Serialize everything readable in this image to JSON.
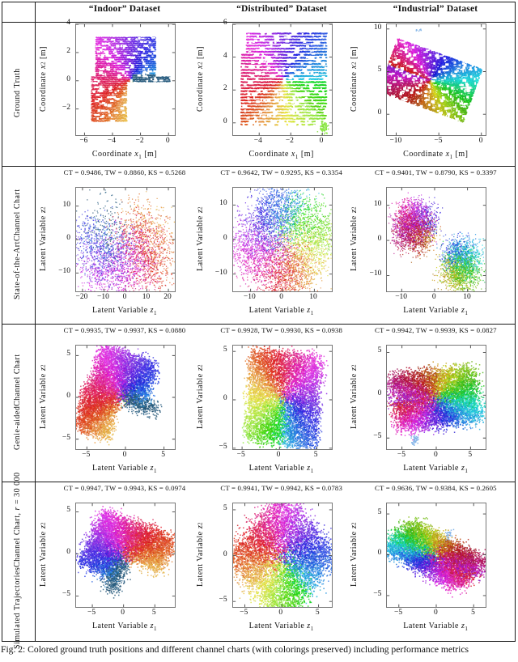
{
  "figure_kind": "paper-figure-table-of-scatter-plots",
  "colors": {
    "table_border": "#1a1a1a",
    "box_border": "#777777",
    "tick": "#444444",
    "text": "#111111",
    "background": "#ffffff",
    "outlier_blue": "#85b5e8"
  },
  "header": {
    "col_labels": [
      "“Indoor” Dataset",
      "“Distributed” Dataset",
      "“Industrial” Dataset"
    ]
  },
  "rows": [
    {
      "label_lines": [
        [
          {
            "t": "Ground Truth"
          }
        ]
      ]
    },
    {
      "label_lines": [
        [
          {
            "t": "State-of-the-Art"
          }
        ],
        [
          {
            "t": "Channel Chart"
          }
        ]
      ]
    },
    {
      "label_lines": [
        [
          {
            "t": "Genie-aided"
          }
        ],
        [
          {
            "t": "Channel Chart"
          }
        ]
      ]
    },
    {
      "label_lines": [
        [
          {
            "t": "Simulated Trajectories"
          }
        ],
        [
          {
            "t": "Channel Chart, "
          },
          {
            "t": "r",
            "i": true
          },
          {
            "t": " = 30 000"
          }
        ]
      ]
    }
  ],
  "caption": "Fig. 2: Colored ground truth positions and different channel charts (with colorings preserved) including performance metrics",
  "colormap_note": "Scatter points are colored by ground-truth position with a 2D rainbow colormap; colorings are preserved in all channel chart rows.",
  "datasets": {
    "indoor": {
      "aspect": 1.05,
      "colormap": {
        "offset": 193,
        "slope": 0.8,
        "wrap": true
      }
    },
    "distributed": {
      "aspect": 1.04,
      "colormap": {
        "offset": 188,
        "slope": 0.84,
        "wrap": true
      }
    },
    "industrial": {
      "aspect": 0.56,
      "colormap": {
        "offset": 140,
        "slope": 1.25,
        "wrap": false
      },
      "center": [
        -6.05,
        4.05
      ],
      "halfL": 5.3,
      "halfW": 3.3,
      "angle_deg": -20
    }
  },
  "chart_data": [
    {
      "row": 0,
      "col": 0,
      "type": "scatter",
      "dataset": "indoor",
      "metrics": null,
      "metrics_text": "",
      "xlabel": {
        "pre": "Coordinate",
        "v": "x",
        "sub": "1",
        "post": "[m]"
      },
      "ylabel": {
        "pre": "Coordinate",
        "v": "x",
        "sub": "2",
        "post": "[m]"
      },
      "xlim": [
        -6.6,
        0.45
      ],
      "ylim": [
        -3.85,
        4.0
      ],
      "xticks": [
        [
          -6,
          "−6"
        ],
        [
          -4,
          "−4"
        ],
        [
          -2,
          "−2"
        ],
        [
          0,
          "0"
        ]
      ],
      "yticks": [
        [
          -2,
          "−2"
        ],
        [
          0,
          "0"
        ],
        [
          2,
          "2"
        ],
        [
          4,
          "4"
        ]
      ],
      "style": {
        "mode": "gt-lines",
        "lineStep": 0.14,
        "ptStep": 0.035,
        "holes": 120
      }
    },
    {
      "row": 0,
      "col": 1,
      "type": "scatter",
      "dataset": "distributed",
      "metrics": null,
      "metrics_text": "",
      "xlabel": {
        "pre": "Coordinate",
        "v": "x",
        "sub": "1",
        "post": "[m]"
      },
      "ylabel": {
        "pre": "Coordinate",
        "v": "x",
        "sub": "2",
        "post": "[m]"
      },
      "xlim": [
        -5.65,
        0.6
      ],
      "ylim": [
        -0.75,
        6.0
      ],
      "xticks": [
        [
          -4,
          "−4"
        ],
        [
          -2,
          "−2"
        ],
        [
          0,
          "0"
        ]
      ],
      "yticks": [
        [
          0,
          "0"
        ],
        [
          2,
          "2"
        ],
        [
          4,
          "4"
        ],
        [
          6,
          "6"
        ]
      ],
      "style": {
        "mode": "gt-lines",
        "lineStep": 0.185,
        "ptStep": 0.03,
        "holes": 150,
        "outliers": [
          {
            "x": 0.05,
            "y": -0.25,
            "n": 70,
            "spread": 0.16,
            "uv": [
              0.99,
              0.03
            ]
          }
        ]
      }
    },
    {
      "row": 0,
      "col": 2,
      "type": "scatter",
      "dataset": "industrial",
      "metrics": null,
      "metrics_text": "",
      "xlabel": {
        "pre": "Coordinate",
        "v": "x",
        "sub": "1",
        "post": "[m]"
      },
      "ylabel": {
        "pre": "Coordinate",
        "v": "x",
        "sub": "2",
        "post": "[m]"
      },
      "xlim": [
        -11.1,
        0.5
      ],
      "ylim": [
        -2.45,
        10.55
      ],
      "xticks": [
        [
          -10,
          "−10"
        ],
        [
          -5,
          "−5"
        ],
        [
          0,
          "0"
        ]
      ],
      "yticks": [
        [
          0,
          "0"
        ],
        [
          5,
          "5"
        ],
        [
          10,
          "10"
        ]
      ],
      "style": {
        "mode": "gt-fill",
        "n": 8500,
        "holes": 240,
        "outliers": [
          {
            "x": -7.4,
            "y": 10.05,
            "n": 8,
            "spread": 0.18,
            "color": "#8ab9e8"
          }
        ]
      }
    },
    {
      "row": 1,
      "col": 0,
      "type": "scatter",
      "dataset": "indoor",
      "metrics": {
        "CT": 0.9486,
        "TW": 0.886,
        "KS": 0.5268
      },
      "metrics_text": "CT = 0.9486, TW = 0.8860, KS = 0.5268",
      "xlabel": {
        "pre": "Latent Variable",
        "v": "z",
        "sub": "1",
        "post": ""
      },
      "ylabel": {
        "pre": "Latent Variable",
        "v": "z",
        "sub": "2",
        "post": ""
      },
      "xlim": [
        -23,
        23
      ],
      "ylim": [
        -15.5,
        15.5
      ],
      "xticks": [
        [
          -20,
          "−20"
        ],
        [
          -10,
          "−10"
        ],
        [
          0,
          "0"
        ],
        [
          10,
          "10"
        ],
        [
          20,
          "20"
        ]
      ],
      "yticks": [
        [
          -10,
          "−10"
        ],
        [
          0,
          "0"
        ],
        [
          10,
          "10"
        ]
      ],
      "style": {
        "mode": "cc",
        "n": 5200,
        "size": 1.25,
        "alpha": 0.8,
        "rot": 100,
        "swirl": 125,
        "pow": 0.62,
        "powMix": {
          "pow": 1.7,
          "frac": 0.33
        },
        "noise": 0.13,
        "sx": 16.5,
        "sy": 13,
        "shift": [
          -1.2,
          0.3
        ],
        "drop": 0.45
      }
    },
    {
      "row": 1,
      "col": 1,
      "type": "scatter",
      "dataset": "distributed",
      "metrics": {
        "CT": 0.9642,
        "TW": 0.9295,
        "KS": 0.3354
      },
      "metrics_text": "CT = 0.9642, TW = 0.9295, KS = 0.3354",
      "xlabel": {
        "pre": "Latent Variable",
        "v": "z",
        "sub": "1",
        "post": ""
      },
      "ylabel": {
        "pre": "Latent Variable",
        "v": "z",
        "sub": "2",
        "post": ""
      },
      "xlim": [
        -15.5,
        15.5
      ],
      "ylim": [
        -15,
        15
      ],
      "xticks": [
        [
          -10,
          "−10"
        ],
        [
          0,
          "0"
        ],
        [
          10,
          "10"
        ]
      ],
      "yticks": [
        [
          -10,
          "−10"
        ],
        [
          0,
          "0"
        ],
        [
          10,
          "10"
        ]
      ],
      "style": {
        "mode": "cc",
        "n": 6000,
        "size": 1.25,
        "alpha": 0.8,
        "rot": 55,
        "swirl": 40,
        "pow": 0.9,
        "noise": 0.12,
        "sx": 11.5,
        "sy": 12.3,
        "shift": [
          0.3,
          -0.6
        ],
        "drop": 0.2
      }
    },
    {
      "row": 1,
      "col": 2,
      "type": "scatter",
      "dataset": "industrial",
      "metrics": {
        "CT": 0.9401,
        "TW": 0.879,
        "KS": 0.3397
      },
      "metrics_text": "CT = 0.9401, TW = 0.8790, KS = 0.3397",
      "xlabel": {
        "pre": "Latent Variable",
        "v": "z",
        "sub": "1",
        "post": ""
      },
      "ylabel": {
        "pre": "Latent Variable",
        "v": "z",
        "sub": "2",
        "post": ""
      },
      "xlim": [
        -14.5,
        15.5
      ],
      "ylim": [
        -14.5,
        15
      ],
      "xticks": [
        [
          -10,
          "−10"
        ],
        [
          0,
          "0"
        ],
        [
          10,
          "10"
        ]
      ],
      "yticks": [
        [
          -10,
          "−10"
        ],
        [
          0,
          "0"
        ],
        [
          10,
          "10"
        ]
      ],
      "style": {
        "mode": "cc",
        "n": 6000,
        "size": 1.25,
        "alpha": 0.8,
        "rot": -10,
        "swirl": 0,
        "pow": 1,
        "noise": 0.13,
        "sx": 9.5,
        "sy": 10.5,
        "shift": [
          0.3,
          -0.3
        ],
        "drop": 0.25,
        "clusters": [
          {
            "u0": 0,
            "u1": 0.55,
            "scale": 0.78,
            "dx": -3.2,
            "dy": 3.8
          },
          {
            "u0": 0.55,
            "u1": 1.01,
            "scale": 0.82,
            "dx": 3.4,
            "dy": -5.6
          }
        ]
      }
    },
    {
      "row": 2,
      "col": 0,
      "type": "scatter",
      "dataset": "indoor",
      "metrics": {
        "CT": 0.9935,
        "TW": 0.9937,
        "KS": 0.088
      },
      "metrics_text": "CT = 0.9935, TW = 0.9937, KS = 0.0880",
      "xlabel": {
        "pre": "Latent Variable",
        "v": "z",
        "sub": "1",
        "post": ""
      },
      "ylabel": {
        "pre": "Latent Variable",
        "v": "z",
        "sub": "2",
        "post": ""
      },
      "xlim": [
        -6.4,
        6.4
      ],
      "ylim": [
        -6.2,
        6.2
      ],
      "xticks": [
        [
          -5,
          "−5"
        ],
        [
          0,
          "0"
        ],
        [
          5,
          "5"
        ]
      ],
      "yticks": [
        [
          -5,
          "−5"
        ],
        [
          0,
          "0"
        ],
        [
          5,
          "5"
        ]
      ],
      "style": {
        "mode": "cc",
        "n": 7200,
        "size": 1.5,
        "alpha": 0.85,
        "rot": -18,
        "noise": 0.05,
        "sx": 4.7,
        "sy": 4.9,
        "shift": [
          -0.5,
          0
        ],
        "speckles": 60
      }
    },
    {
      "row": 2,
      "col": 1,
      "type": "scatter",
      "dataset": "distributed",
      "metrics": {
        "CT": 0.9928,
        "TW": 0.993,
        "KS": 0.0938
      },
      "metrics_text": "CT = 0.9928, TW = 0.9930, KS = 0.0938",
      "xlabel": {
        "pre": "Latent Variable",
        "v": "z",
        "sub": "1",
        "post": ""
      },
      "ylabel": {
        "pre": "Latent Variable",
        "v": "z",
        "sub": "2",
        "post": ""
      },
      "xlim": [
        -6.2,
        7.0
      ],
      "ylim": [
        -5.1,
        5.6
      ],
      "xticks": [
        [
          -5,
          "−5"
        ],
        [
          0,
          "0"
        ],
        [
          5,
          "5"
        ]
      ],
      "yticks": [
        [
          -5,
          "−5"
        ],
        [
          0,
          "0"
        ],
        [
          5,
          "5"
        ]
      ],
      "style": {
        "mode": "cc",
        "n": 7200,
        "size": 1.5,
        "alpha": 0.85,
        "rot": -95,
        "noise": 0.05,
        "sx": 4.4,
        "sy": 4.6,
        "shift": [
          0.5,
          0.2
        ],
        "speckles": 60
      }
    },
    {
      "row": 2,
      "col": 2,
      "type": "scatter",
      "dataset": "industrial",
      "metrics": {
        "CT": 0.9942,
        "TW": 0.9939,
        "KS": 0.0827
      },
      "metrics_text": "CT = 0.9942, TW = 0.9939, KS = 0.0827",
      "xlabel": {
        "pre": "Latent Variable",
        "v": "z",
        "sub": "1",
        "post": ""
      },
      "ylabel": {
        "pre": "Latent Variable",
        "v": "z",
        "sub": "2",
        "post": ""
      },
      "xlim": [
        -7.2,
        7.2
      ],
      "ylim": [
        -6.3,
        5.8
      ],
      "xticks": [
        [
          -5,
          "−5"
        ],
        [
          0,
          "0"
        ],
        [
          5,
          "5"
        ]
      ],
      "yticks": [
        [
          -5,
          "−5"
        ],
        [
          0,
          "0"
        ],
        [
          5,
          "5"
        ]
      ],
      "style": {
        "mode": "cc",
        "n": 7200,
        "size": 1.5,
        "alpha": 0.85,
        "rot": 8,
        "flipY": true,
        "aspect": 0.75,
        "noise": 0.06,
        "sx": 5.9,
        "sy": 4.1,
        "shift": [
          -0.2,
          -0.3
        ],
        "speckles": 60,
        "outliers": [
          {
            "x": -3.1,
            "y": -5.2,
            "n": 40,
            "spread": 0.3,
            "color": "#85b5e8"
          }
        ]
      }
    },
    {
      "row": 3,
      "col": 0,
      "type": "scatter",
      "dataset": "indoor",
      "metrics": {
        "CT": 0.9947,
        "TW": 0.9943,
        "KS": 0.0974
      },
      "metrics_text": "CT = 0.9947, TW = 0.9943, KS = 0.0974",
      "xlabel": {
        "pre": "Latent Variable",
        "v": "z",
        "sub": "1",
        "post": ""
      },
      "ylabel": {
        "pre": "Latent Variable",
        "v": "z",
        "sub": "2",
        "post": ""
      },
      "xlim": [
        -7.6,
        8.2
      ],
      "ylim": [
        -6.3,
        6.0
      ],
      "xticks": [
        [
          -5,
          "−5"
        ],
        [
          0,
          "0"
        ],
        [
          5,
          "5"
        ]
      ],
      "yticks": [
        [
          -5,
          "−5"
        ],
        [
          0,
          "0"
        ],
        [
          5,
          "5"
        ]
      ],
      "style": {
        "mode": "cc",
        "n": 7200,
        "size": 1.5,
        "alpha": 0.85,
        "rot": 65,
        "flipX": true,
        "noise": 0.065,
        "sx": 5.6,
        "sy": 4.3,
        "shift": [
          0,
          -0.4
        ],
        "speckles": 60
      }
    },
    {
      "row": 3,
      "col": 1,
      "type": "scatter",
      "dataset": "distributed",
      "metrics": {
        "CT": 0.9941,
        "TW": 0.9942,
        "KS": 0.0783
      },
      "metrics_text": "CT = 0.9941, TW = 0.9942, KS = 0.0783",
      "xlabel": {
        "pre": "Latent Variable",
        "v": "z",
        "sub": "1",
        "post": ""
      },
      "ylabel": {
        "pre": "Latent Variable",
        "v": "z",
        "sub": "2",
        "post": ""
      },
      "xlim": [
        -6.6,
        6.8
      ],
      "ylim": [
        -5.6,
        5.7
      ],
      "xticks": [
        [
          -5,
          "−5"
        ],
        [
          0,
          "0"
        ],
        [
          5,
          "5"
        ]
      ],
      "yticks": [
        [
          -5,
          "−5"
        ],
        [
          0,
          "0"
        ],
        [
          5,
          "5"
        ]
      ],
      "style": {
        "mode": "cc",
        "n": 7200,
        "size": 1.5,
        "alpha": 0.85,
        "rot": -45,
        "noise": 0.065,
        "sx": 5.1,
        "sy": 5.0,
        "shift": [
          0,
          -0.2
        ],
        "speckles": 60
      }
    },
    {
      "row": 3,
      "col": 2,
      "type": "scatter",
      "dataset": "industrial",
      "metrics": {
        "CT": 0.9636,
        "TW": 0.9384,
        "KS": 0.2605
      },
      "metrics_text": "CT = 0.9636, TW = 0.9384, KS = 0.2605",
      "xlabel": {
        "pre": "Latent Variable",
        "v": "z",
        "sub": "1",
        "post": ""
      },
      "ylabel": {
        "pre": "Latent Variable",
        "v": "z",
        "sub": "2",
        "post": ""
      },
      "xlim": [
        -6.6,
        6.6
      ],
      "ylim": [
        -6.4,
        6.3
      ],
      "xticks": [
        [
          -5,
          "−5"
        ],
        [
          0,
          "0"
        ],
        [
          5,
          "5"
        ]
      ],
      "yticks": [
        [
          -5,
          "−5"
        ],
        [
          0,
          "0"
        ],
        [
          5,
          "5"
        ]
      ],
      "style": {
        "mode": "cc",
        "n": 7200,
        "size": 1.5,
        "alpha": 0.85,
        "rot": 142,
        "aspect": 0.5,
        "noise": 0.06,
        "sx": 6.3,
        "sy": 4.0,
        "shift": [
          -0.3,
          0
        ],
        "speckles": 60,
        "outliers": [
          {
            "x": 1.6,
            "y": 2.5,
            "n": 22,
            "spread": 0.35,
            "color": "#85b5e8"
          }
        ]
      }
    }
  ]
}
